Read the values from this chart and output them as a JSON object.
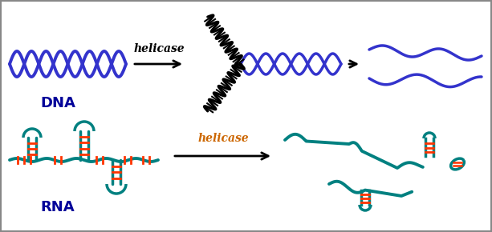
{
  "dna_color": "#3333cc",
  "rna_color": "#008080",
  "rna_bar_color": "#ff3300",
  "helicase_text_color": "#cc6600",
  "label_color": "#000099",
  "bg_color": "#ffffff",
  "border_color": "#888888",
  "dna_label": "DNA",
  "rna_label": "RNA",
  "helicase_label": "helicase",
  "figsize": [
    6.13,
    2.9
  ],
  "dpi": 100
}
